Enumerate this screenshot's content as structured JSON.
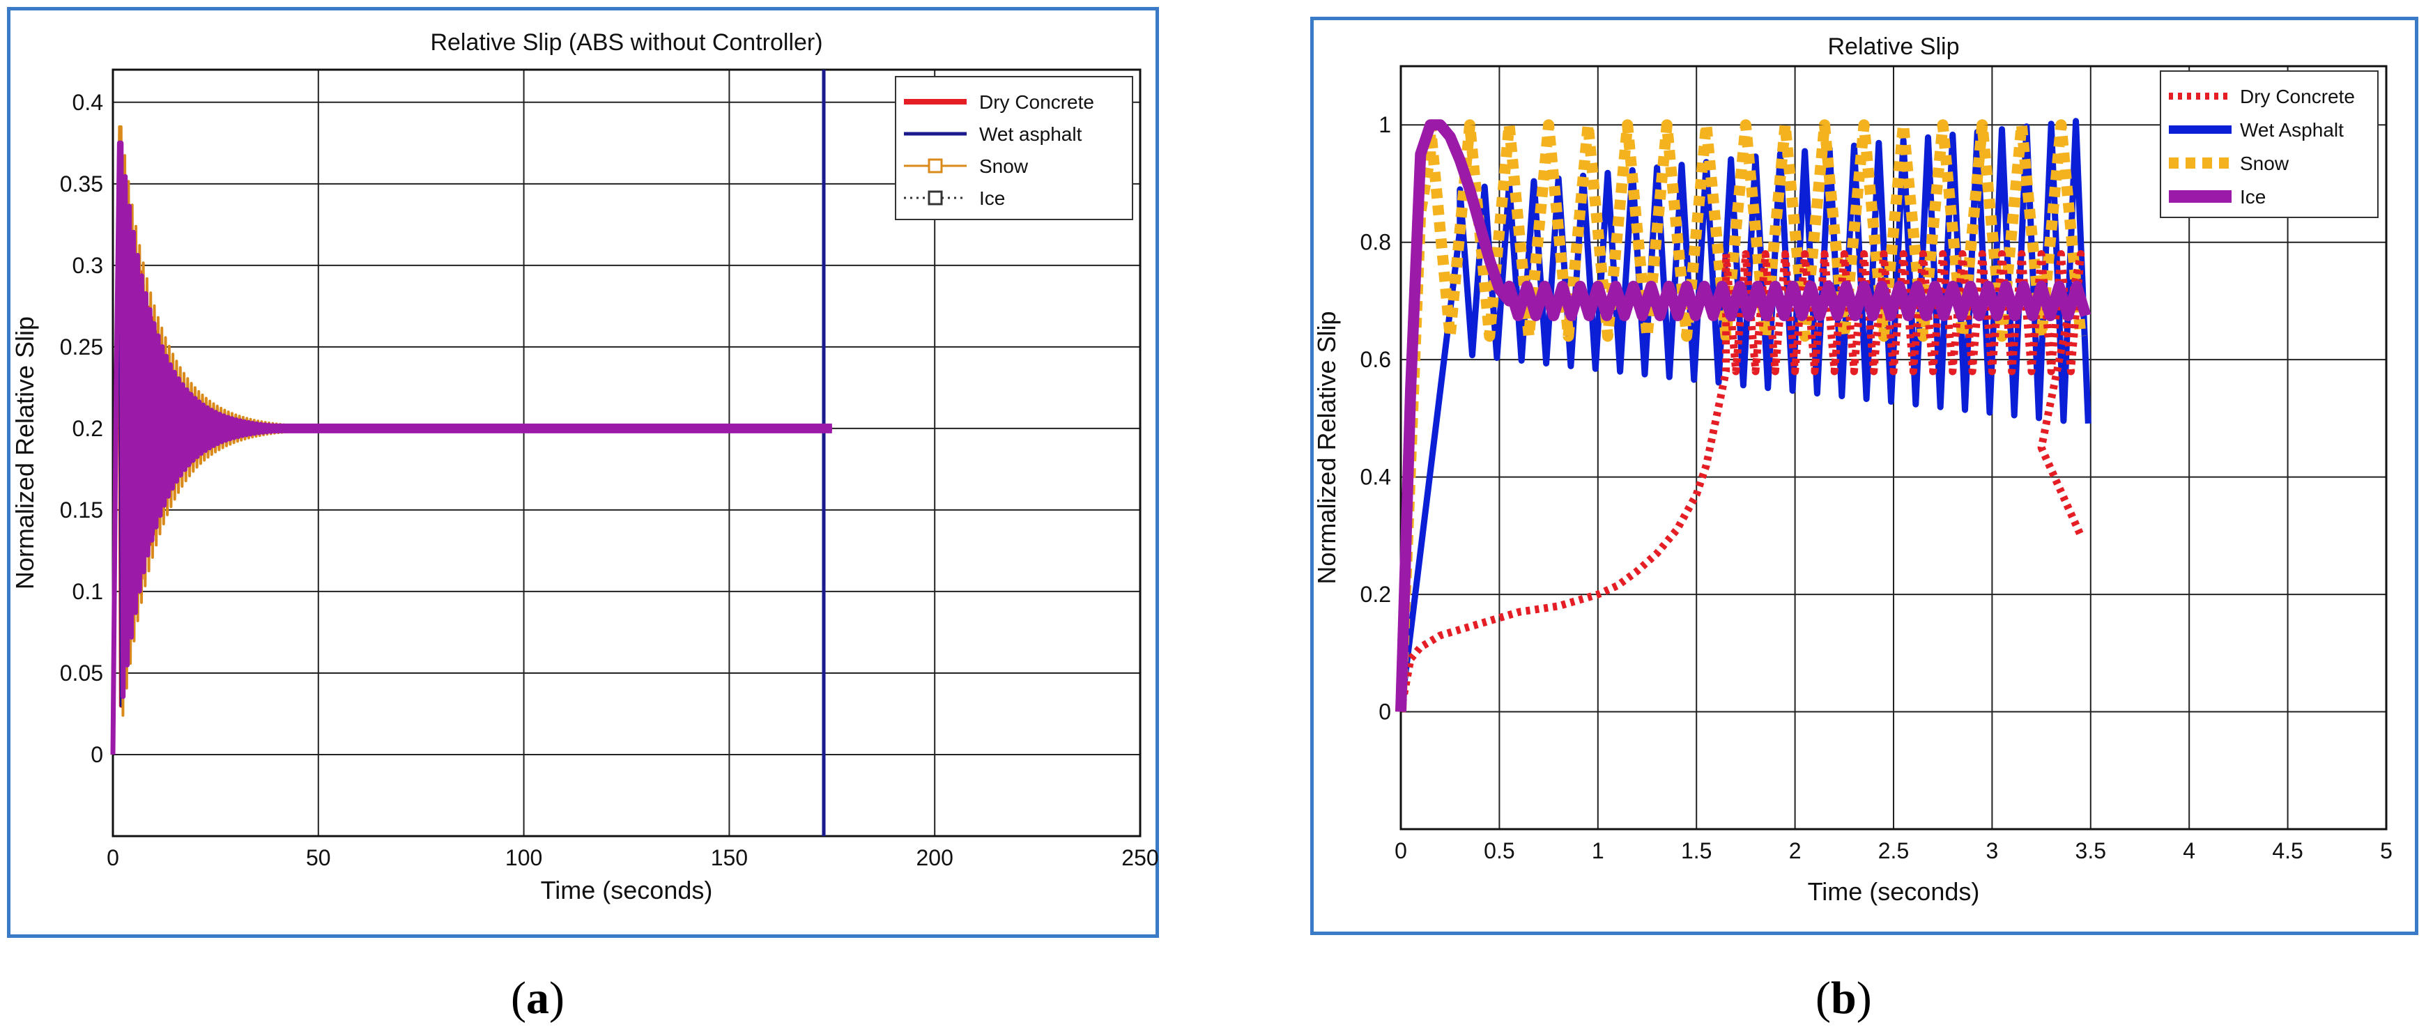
{
  "captions": {
    "a_open": "(",
    "a_letter": "a",
    "a_close": ")",
    "b_open": "(",
    "b_letter": "b",
    "b_close": ")"
  },
  "colors": {
    "frame": "#3a7bc8",
    "dry": "#e51e25",
    "wet": "#0a1fd6",
    "wet_a": "#1a1a8c",
    "snow": "#f4b21e",
    "snow_a": "#d98a1a",
    "ice": "#9b1aa8"
  },
  "chart_data": [
    {
      "id": "a",
      "type": "line",
      "title": "Relative Slip (ABS without Controller)",
      "xlabel": "Time (seconds)",
      "ylabel": "Normalized Relative Slip",
      "xlim": [
        0,
        250
      ],
      "ylim": [
        -0.05,
        0.42
      ],
      "xticks": [
        0,
        50,
        100,
        150,
        200,
        250
      ],
      "xtick_labels": [
        "0",
        "50",
        "100",
        "150",
        "200",
        "250"
      ],
      "yticks": [
        0,
        0.05,
        0.1,
        0.15,
        0.2,
        0.25,
        0.3,
        0.35,
        0.4
      ],
      "ytick_labels": [
        "0",
        "0.05",
        "0.1",
        "0.15",
        "0.2",
        "0.25",
        "0.3",
        "0.35",
        "0.4"
      ],
      "grid": true,
      "legend_position": "top-right",
      "legend": [
        "Dry Concrete",
        "Wet asphalt",
        "Snow",
        "Ice"
      ],
      "series": [
        {
          "name": "Dry Concrete",
          "style": "solid-thick",
          "t_end": 175,
          "peak": 0.37,
          "steady": 0.2,
          "tau": 8
        },
        {
          "name": "Wet asphalt",
          "style": "solid",
          "t_end": 175,
          "peak": 0.37,
          "steady": 0.2,
          "tau": 8,
          "vertical_at": 173
        },
        {
          "name": "Snow",
          "style": "solid-square-marker",
          "t_end": 175,
          "peak": 0.385,
          "steady": 0.2,
          "tau": 9
        },
        {
          "name": "Ice",
          "style": "dotted-square-marker",
          "t_end": 175,
          "peak": 0.375,
          "steady": 0.2,
          "tau": 8
        }
      ]
    },
    {
      "id": "b",
      "type": "line",
      "title": "Relative Slip",
      "xlabel": "Time (seconds)",
      "ylabel": "Normalized Relative Slip",
      "xlim": [
        0,
        5
      ],
      "ylim": [
        -0.2,
        1.1
      ],
      "xticks": [
        0,
        0.5,
        1,
        1.5,
        2,
        2.5,
        3,
        3.5,
        4,
        4.5,
        5
      ],
      "xtick_labels": [
        "0",
        "0.5",
        "1",
        "1.5",
        "2",
        "2.5",
        "3",
        "3.5",
        "4",
        "4.5",
        "5"
      ],
      "yticks": [
        0,
        0.2,
        0.4,
        0.6,
        0.8,
        1
      ],
      "ytick_labels": [
        "0",
        "0.2",
        "0.4",
        "0.6",
        "0.8",
        "1"
      ],
      "grid": true,
      "legend_position": "top-right",
      "legend": [
        "Dry Concrete",
        "Wet Asphalt",
        "Snow",
        "Ice"
      ],
      "series": [
        {
          "name": "Dry Concrete",
          "style": "dotted",
          "x": [
            0,
            0.05,
            0.1,
            0.2,
            0.3,
            0.4,
            0.5,
            0.6,
            0.7,
            0.8,
            0.9,
            1.0,
            1.1,
            1.2,
            1.3,
            1.4,
            1.5,
            1.55,
            1.6,
            1.65
          ],
          "y": [
            0.0,
            0.09,
            0.11,
            0.13,
            0.14,
            0.15,
            0.16,
            0.17,
            0.175,
            0.18,
            0.19,
            0.2,
            0.215,
            0.24,
            0.27,
            0.31,
            0.37,
            0.42,
            0.5,
            0.58
          ],
          "osc_start": 1.65,
          "osc_end": 3.45,
          "osc_center": 0.68,
          "osc_amp": 0.1,
          "osc_period": 0.1,
          "tail_drop": [
            3.25,
            3.45,
            0.3
          ]
        },
        {
          "name": "Wet Asphalt",
          "style": "solid",
          "x": [
            0,
            0.3
          ],
          "y": [
            0.0,
            0.82
          ],
          "osc_start": 0.3,
          "osc_end": 3.52,
          "osc_center": 0.75,
          "osc_amp_start": 0.14,
          "osc_amp_end": 0.26,
          "osc_period": 0.125
        },
        {
          "name": "Snow",
          "style": "dashed-thick",
          "x": [
            0,
            0.1,
            0.15
          ],
          "y": [
            0.0,
            0.85,
            0.95
          ],
          "osc_start": 0.15,
          "osc_end": 3.5,
          "osc_center": 0.82,
          "osc_amp": 0.18,
          "osc_period": 0.2
        },
        {
          "name": "Ice",
          "style": "solid-thick",
          "x": [
            0,
            0.05,
            0.1,
            0.15,
            0.2,
            0.25,
            0.3,
            0.35,
            0.4,
            0.45,
            0.5,
            0.55
          ],
          "y": [
            0.0,
            0.55,
            0.95,
            1.0,
            1.0,
            0.98,
            0.94,
            0.89,
            0.83,
            0.77,
            0.72,
            0.7
          ],
          "osc_start": 0.55,
          "osc_end": 3.5,
          "osc_center": 0.7,
          "osc_amp": 0.025,
          "osc_period": 0.09
        }
      ]
    }
  ]
}
